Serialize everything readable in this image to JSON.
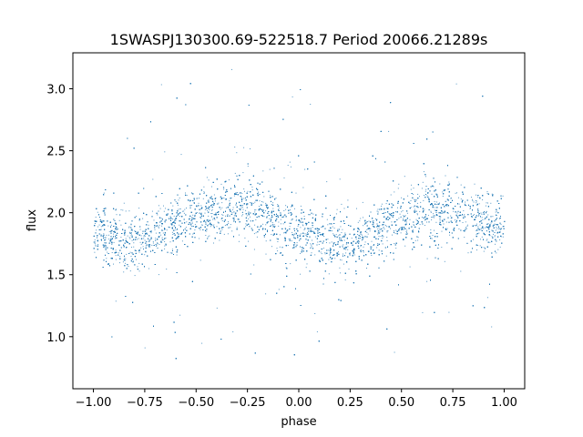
{
  "chart_data": {
    "type": "scatter",
    "title": "1SWASPJ130300.69-522518.7 Period 20066.21289s",
    "xlabel": "phase",
    "ylabel": "flux",
    "xlim": [
      -1.1,
      1.1
    ],
    "ylim": [
      0.58,
      3.29
    ],
    "xticks": [
      -1.0,
      -0.75,
      -0.5,
      -0.25,
      0.0,
      0.25,
      0.5,
      0.75,
      1.0
    ],
    "xtick_labels": [
      "−1.00",
      "−0.75",
      "−0.50",
      "−0.25",
      "0.00",
      "0.25",
      "0.50",
      "0.75",
      "1.00"
    ],
    "yticks": [
      1.0,
      1.5,
      2.0,
      2.5,
      3.0
    ],
    "ytick_labels": [
      "1.0",
      "1.5",
      "2.0",
      "2.5",
      "3.0"
    ],
    "grid": false,
    "legend": "none",
    "point_color": "#1f77b4",
    "series": [
      {
        "x": [
          -1.0,
          -0.9,
          -0.8,
          -0.75,
          -0.7,
          -0.6,
          -0.5,
          -0.4,
          -0.3,
          -0.25,
          -0.2,
          -0.1,
          0.0,
          0.1,
          0.2,
          0.25,
          0.3,
          0.4,
          0.5,
          0.6,
          0.7,
          0.75,
          0.8,
          0.9,
          1.0
        ],
        "y": [
          1.85,
          1.8,
          1.76,
          1.78,
          1.82,
          1.9,
          1.97,
          2.03,
          2.05,
          2.04,
          2.0,
          1.93,
          1.86,
          1.8,
          1.76,
          1.76,
          1.79,
          1.88,
          1.96,
          2.02,
          2.04,
          2.03,
          2.0,
          1.93,
          1.86
        ]
      }
    ]
  }
}
